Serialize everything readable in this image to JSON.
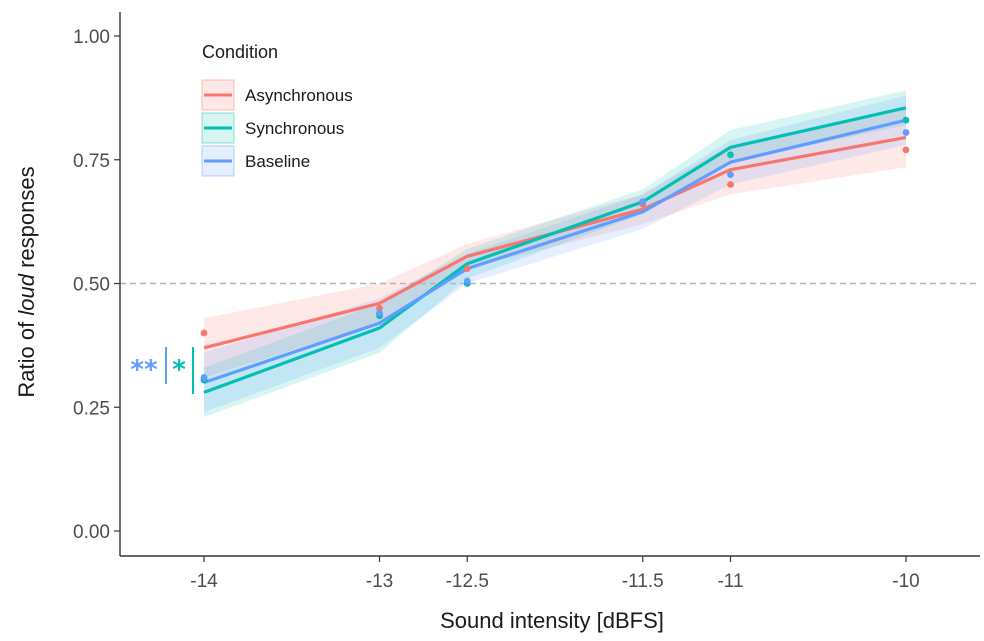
{
  "chart_data": {
    "type": "line",
    "xlabel_parts": [
      "Sound intensity [dBFS]"
    ],
    "ylabel_parts": [
      "Ratio of ",
      "loud",
      " responses"
    ],
    "x_ticks": [
      -14,
      -13,
      -12.5,
      -11.5,
      -11,
      -10
    ],
    "x_tick_labels": [
      "-14",
      "-13",
      "-12.5",
      "-11.5",
      "-11",
      "-10"
    ],
    "y_ticks": [
      0,
      0.25,
      0.5,
      0.75,
      1.0
    ],
    "y_tick_labels": [
      "0.00",
      "0.25",
      "0.50",
      "0.75",
      "1.00"
    ],
    "ylim": [
      0,
      1.0
    ],
    "reference_line": 0.5,
    "legend": {
      "title": "Condition",
      "placement": "top-left"
    },
    "series": [
      {
        "name": "Asynchronous",
        "color": "#F8766D",
        "points": [
          0.4,
          0.45,
          0.53,
          0.66,
          0.7,
          0.77
        ],
        "fit": [
          0.37,
          0.46,
          0.555,
          0.65,
          0.73,
          0.795
        ],
        "ci_lower": [
          0.31,
          0.42,
          0.53,
          0.62,
          0.68,
          0.735
        ],
        "ci_upper": [
          0.43,
          0.5,
          0.58,
          0.68,
          0.78,
          0.855
        ]
      },
      {
        "name": "Synchronous",
        "color": "#00BFB3",
        "points": [
          0.305,
          0.435,
          0.5,
          0.665,
          0.76,
          0.83
        ],
        "fit": [
          0.28,
          0.41,
          0.54,
          0.665,
          0.775,
          0.855
        ],
        "ci_lower": [
          0.23,
          0.36,
          0.51,
          0.64,
          0.745,
          0.82
        ],
        "ci_upper": [
          0.33,
          0.46,
          0.57,
          0.69,
          0.81,
          0.89
        ]
      },
      {
        "name": "Baseline",
        "color": "#619CFF",
        "points": [
          0.31,
          0.44,
          0.505,
          0.665,
          0.72,
          0.805
        ],
        "fit": [
          0.3,
          0.42,
          0.53,
          0.645,
          0.745,
          0.83
        ],
        "ci_lower": [
          0.24,
          0.37,
          0.5,
          0.61,
          0.7,
          0.78
        ],
        "ci_upper": [
          0.36,
          0.47,
          0.56,
          0.68,
          0.79,
          0.88
        ]
      }
    ],
    "significance": [
      {
        "text": "**",
        "color": "#619CFF"
      },
      {
        "text": "*",
        "color": "#00BFB3"
      }
    ]
  }
}
